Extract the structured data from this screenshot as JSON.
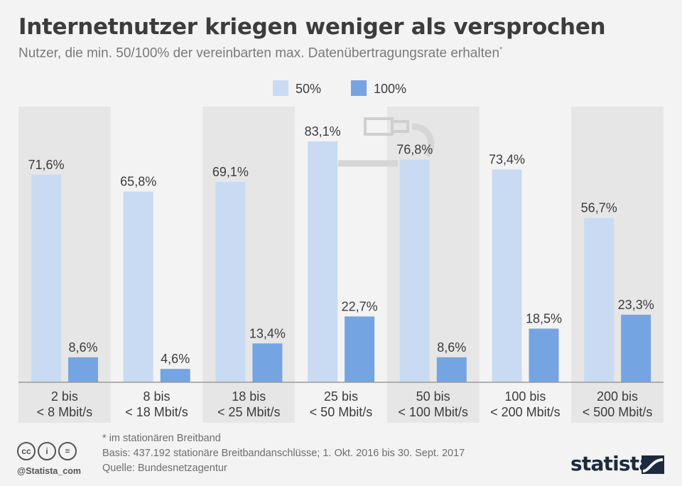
{
  "title": "Internetnutzer kriegen weniger als versprochen",
  "subtitle": "Nutzer, die min. 50/100% der vereinbarten max. Datenübertragungsrate erhalten",
  "subtitle_mark": "*",
  "colors": {
    "series_50": "#c8dbf3",
    "series_100": "#74a4e2",
    "band": "#e6e6e6",
    "text": "#3c3c3c"
  },
  "chart_data": {
    "type": "bar",
    "title": "Internetnutzer kriegen weniger als versprochen",
    "categories": [
      [
        "2 bis",
        "< 8 Mbit/s"
      ],
      [
        "8 bis",
        "< 18 Mbit/s"
      ],
      [
        "18 bis",
        "< 25 Mbit/s"
      ],
      [
        "25 bis",
        "< 50 Mbit/s"
      ],
      [
        "50 bis",
        "< 100 Mbit/s"
      ],
      [
        "100 bis",
        "< 200 Mbit/s"
      ],
      [
        "200 bis",
        "< 500 Mbit/s"
      ]
    ],
    "series": [
      {
        "name": "50%",
        "values": [
          71.6,
          65.8,
          69.1,
          83.1,
          76.8,
          73.4,
          56.7
        ],
        "labels": [
          "71,6%",
          "65,8%",
          "69,1%",
          "83,1%",
          "76,8%",
          "73,4%",
          "56,7%"
        ]
      },
      {
        "name": "100%",
        "values": [
          8.6,
          4.6,
          13.4,
          22.7,
          8.6,
          18.5,
          23.3
        ],
        "labels": [
          "8,6%",
          "4,6%",
          "13,4%",
          "22,7%",
          "8,6%",
          "18,5%",
          "23,3%"
        ]
      }
    ],
    "xlabel": "",
    "ylabel": "",
    "ylim": [
      0,
      100
    ],
    "legend": "top-center",
    "grid": false
  },
  "footnotes": {
    "note": "* im stationären Breitband",
    "basis": "Basis: 437.192 stationäre Breitbandanschlüsse; 1. Okt. 2016 bis 30. Sept. 2017",
    "source": "Quelle: Bundesnetzagentur"
  },
  "license": {
    "cc": "cc",
    "by": "i",
    "nd": "="
  },
  "handle": "@Statista_com",
  "brand": "statista"
}
